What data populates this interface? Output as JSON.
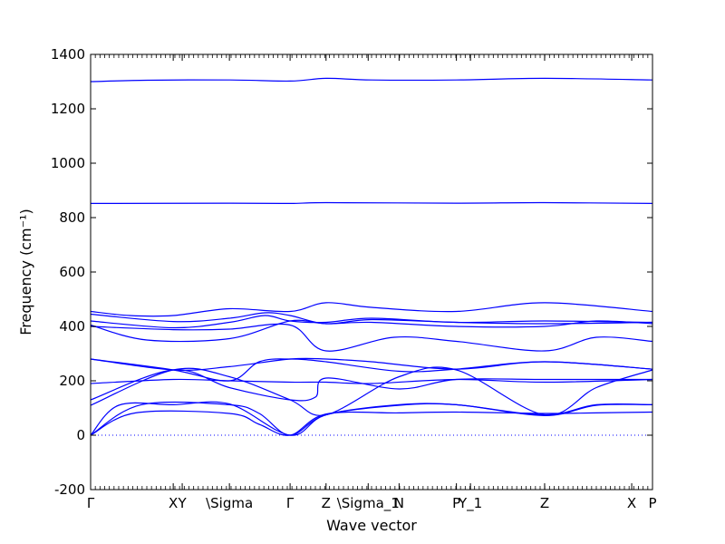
{
  "chart_data": {
    "type": "line",
    "title": "",
    "xlabel": "Wave vector",
    "ylabel": "Frequency (cm⁻¹)",
    "ylim": [
      -200,
      1400
    ],
    "yticks": [
      -200,
      0,
      200,
      400,
      600,
      800,
      1000,
      1200,
      1400
    ],
    "xlim": [
      0,
      10
    ],
    "xticks": [
      {
        "label": "Γ",
        "x": 0.0
      },
      {
        "label": "X",
        "x": 1.47
      },
      {
        "label": "Y",
        "x": 1.63
      },
      {
        "label": "\\Sigma",
        "x": 2.47
      },
      {
        "label": "Γ",
        "x": 3.55
      },
      {
        "label": "Z",
        "x": 4.19
      },
      {
        "label": "\\Sigma_1",
        "x": 4.94
      },
      {
        "label": "N",
        "x": 5.49
      },
      {
        "label": "P",
        "x": 6.51
      },
      {
        "label": "Y_1",
        "x": 6.76
      },
      {
        "label": "Z",
        "x": 8.08
      },
      {
        "label": "X",
        "x": 9.63
      },
      {
        "label": "P",
        "x": 10.0
      }
    ],
    "zero_line": true,
    "grid": false,
    "legend": "none",
    "color": "#0000ff",
    "series": [
      {
        "x": [
          0,
          1.0,
          2.47,
          3.55,
          4.19,
          5.0,
          6.51,
          8.08,
          10.0
        ],
        "values": [
          1300,
          1305,
          1306,
          1302,
          1312,
          1306,
          1306,
          1312,
          1306
        ]
      },
      {
        "x": [
          0,
          2.47,
          3.55,
          4.19,
          6.51,
          8.08,
          10.0
        ],
        "values": [
          852,
          853,
          852,
          855,
          853,
          855,
          852
        ]
      },
      {
        "x": [
          0,
          0.7,
          1.47,
          2.47,
          3.55,
          4.19,
          5.0,
          6.51,
          8.08,
          10.0
        ],
        "values": [
          455,
          440,
          440,
          465,
          455,
          487,
          470,
          455,
          487,
          455
        ]
      },
      {
        "x": [
          0,
          1.47,
          2.47,
          3.1,
          3.55,
          4.19,
          5.0,
          6.51,
          8.08,
          10.0
        ],
        "values": [
          445,
          418,
          430,
          450,
          440,
          410,
          425,
          415,
          410,
          415
        ]
      },
      {
        "x": [
          0,
          1.47,
          2.47,
          3.1,
          3.55,
          4.19,
          5.0,
          6.51,
          8.08,
          10.0
        ],
        "values": [
          420,
          395,
          415,
          440,
          420,
          415,
          430,
          415,
          420,
          415
        ]
      },
      {
        "x": [
          0,
          1.0,
          2.47,
          3.55,
          4.19,
          5.0,
          6.51,
          8.08,
          9.0,
          10.0
        ],
        "values": [
          405,
          350,
          355,
          420,
          410,
          415,
          400,
          400,
          420,
          410
        ]
      },
      {
        "x": [
          0,
          1.47,
          2.47,
          3.55,
          4.19,
          5.4,
          6.51,
          8.08,
          9.0,
          10.0
        ],
        "values": [
          400,
          388,
          390,
          405,
          310,
          360,
          345,
          310,
          360,
          345
        ]
      },
      {
        "x": [
          0,
          1.47,
          2.47,
          3.55,
          4.19,
          5.0,
          6.51,
          8.08,
          10.0
        ],
        "values": [
          280,
          240,
          252,
          280,
          280,
          270,
          243,
          270,
          243
        ]
      },
      {
        "x": [
          0,
          1.47,
          2.47,
          3.0,
          3.55,
          4.19,
          5.5,
          6.51,
          8.08,
          10.0
        ],
        "values": [
          280,
          240,
          200,
          270,
          280,
          270,
          235,
          243,
          270,
          243
        ]
      },
      {
        "x": [
          0,
          1.47,
          2.47,
          3.55,
          4.19,
          5.0,
          6.51,
          8.08,
          10.0
        ],
        "values": [
          190,
          205,
          200,
          195,
          195,
          190,
          205,
          195,
          205
        ]
      },
      {
        "x": [
          0,
          1.47,
          2.47,
          3.55,
          4.0,
          4.19,
          5.49,
          6.51,
          8.08,
          10.0
        ],
        "values": [
          130,
          240,
          175,
          130,
          140,
          210,
          170,
          205,
          205,
          205
        ]
      },
      {
        "x": [
          0,
          1.47,
          2.47,
          3.55,
          4.19,
          5.49,
          6.51,
          8.08,
          9.0,
          10.0
        ],
        "values": [
          110,
          240,
          215,
          130,
          75,
          215,
          240,
          75,
          175,
          240
        ]
      },
      {
        "x": [
          0,
          0.9,
          2.47,
          3.0,
          3.55,
          4.19,
          5.49,
          6.51,
          8.08,
          9.0,
          10.0
        ],
        "values": [
          0,
          112,
          112,
          80,
          0,
          75,
          112,
          112,
          75,
          112,
          112
        ]
      },
      {
        "x": [
          0,
          0.5,
          1.47,
          2.47,
          3.55,
          4.19,
          5.49,
          6.51,
          8.08,
          9.0,
          10.0
        ],
        "values": [
          0,
          110,
          112,
          115,
          0,
          75,
          110,
          112,
          72,
          110,
          112
        ]
      },
      {
        "x": [
          0,
          0.8,
          2.47,
          3.0,
          3.55,
          4.19,
          5.49,
          6.51,
          8.08,
          9.0,
          10.0
        ],
        "values": [
          0,
          82,
          80,
          40,
          0,
          78,
          82,
          85,
          80,
          82,
          85
        ]
      }
    ]
  }
}
